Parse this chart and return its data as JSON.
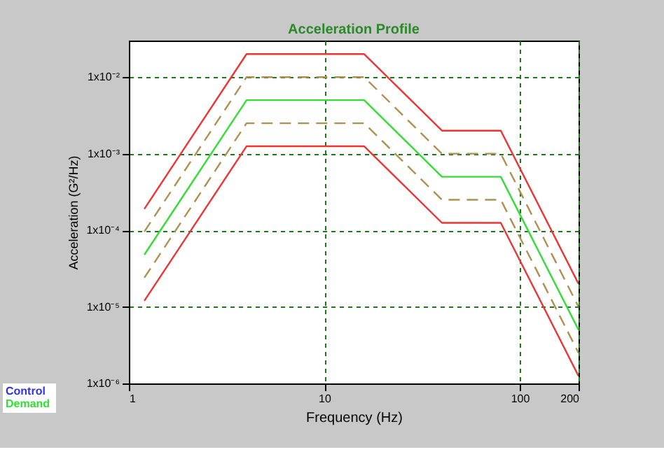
{
  "chart_data": {
    "type": "line",
    "title": "Acceleration Profile",
    "xlabel": "Frequency (Hz)",
    "ylabel": "Acceleration (G²/Hz)",
    "log": "xy",
    "grid": true,
    "legend": "bottom left",
    "xlim": [
      1,
      200
    ],
    "xticks": [
      1,
      10,
      100,
      200
    ],
    "ylim": [
      1e-06,
      0.03
    ],
    "yticks": [
      {
        "value": 1e-06,
        "label": "1x10⁻⁶"
      },
      {
        "value": 1e-05,
        "label": "1x10⁻⁵"
      },
      {
        "value": 0.0001,
        "label": "1x10⁻⁴"
      },
      {
        "value": 0.001,
        "label": "1x10⁻³"
      },
      {
        "value": 0.01,
        "label": "1x10⁻²"
      }
    ],
    "x": [
      1.2,
      4,
      16,
      40,
      80,
      200
    ],
    "annotations": [
      "Control"
    ],
    "series": [
      {
        "color": "#ee3333",
        "line_style": "solid",
        "values": [
          0.00019,
          0.02,
          0.02,
          0.002,
          0.002,
          2e-05
        ]
      },
      {
        "color": "#b09050",
        "line_style": "dashed",
        "values": [
          9.6e-05,
          0.01,
          0.01,
          0.001,
          0.001,
          1e-05
        ]
      },
      {
        "name": "Demand",
        "color": "#33dd33",
        "line_style": "solid",
        "values": [
          4.8e-05,
          0.005,
          0.005,
          0.0005,
          0.0005,
          5e-06
        ]
      },
      {
        "color": "#b09050",
        "line_style": "dashed",
        "values": [
          2.4e-05,
          0.0025,
          0.0025,
          0.00025,
          0.00025,
          2.5e-06
        ]
      },
      {
        "color": "#ee3333",
        "line_style": "solid",
        "values": [
          1.2e-05,
          0.00125,
          0.00125,
          0.000125,
          0.000125,
          1.25e-06
        ]
      }
    ]
  }
}
